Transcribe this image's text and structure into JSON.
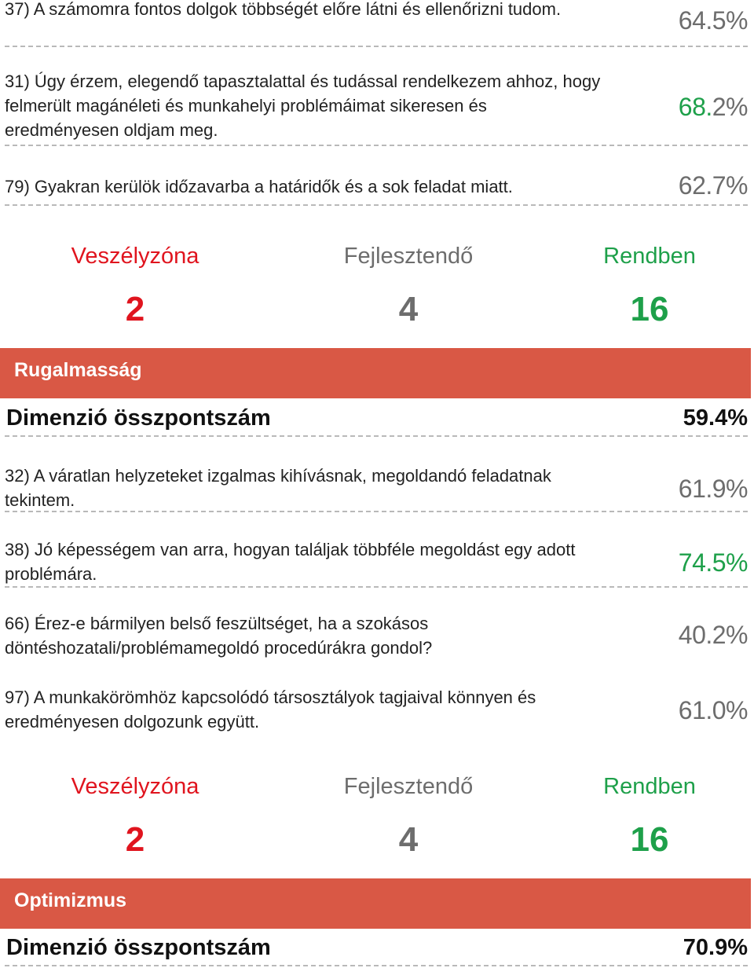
{
  "items_top": [
    {
      "text": "37) A számomra fontos dolgok többségét előre látni és ellenőrizni tudom.",
      "pct": "64.5%",
      "pct_color": "#6d6d6d"
    },
    {
      "text": "31) Úgy érzem, elegendő tapasztalattal és tudással rendelkezem ahhoz, hogy felmerült magánéleti és munkahelyi problémáimat sikeresen és eredményesen oldjam meg.",
      "pct_head": "68.",
      "pct_tail": "2%",
      "pct_head_color": "#1ea04a",
      "pct_tail_color": "#6d6d6d"
    },
    {
      "text": "79) Gyakran kerülök időzavarba a határidők és a sok feladat miatt.",
      "pct": "62.7%",
      "pct_color": "#6d6d6d"
    }
  ],
  "zones_1": {
    "danger_label": "Veszélyzóna",
    "danger_count": "2",
    "develop_label": "Fejlesztendő",
    "develop_count": "4",
    "ok_label": "Rendben",
    "ok_count": "16"
  },
  "section_1": {
    "title": "Rugalmasság",
    "total_label": "Dimenzió összpontszám",
    "total_value": "59.4%"
  },
  "items_mid": [
    {
      "text": "32) A váratlan helyzeteket izgalmas kihívásnak, megoldandó feladatnak tekintem.",
      "pct": "61.9%"
    },
    {
      "text": "38) Jó képességem van arra, hogyan találjak többféle megoldást egy adott problémára.",
      "pct_head": "74.",
      "pct_tail": "5%",
      "pct_head_color": "#1ea04a",
      "pct_tail_color": "#1ea04a"
    },
    {
      "text": "66) Érez-e bármilyen belső feszültséget, ha a szokásos döntéshozatali/problémamegoldó procedúrákra gondol?",
      "pct": "40.2%"
    },
    {
      "text": "97) A munkakörömhöz kapcsolódó társosztályok tagjaival könnyen és eredményesen dolgozunk együtt.",
      "pct": "61.0%"
    }
  ],
  "zones_2": {
    "danger_label": "Veszélyzóna",
    "danger_count": "2",
    "develop_label": "Fejlesztendő",
    "develop_count": "4",
    "ok_label": "Rendben",
    "ok_count": "16"
  },
  "section_2": {
    "title": "Optimizmus",
    "total_label": "Dimenzió összpontszám",
    "total_value": "70.9%"
  },
  "colors": {
    "danger": "#e0141e",
    "develop": "#6d6d6d",
    "ok": "#1ea04a",
    "banner": "#d95845"
  }
}
